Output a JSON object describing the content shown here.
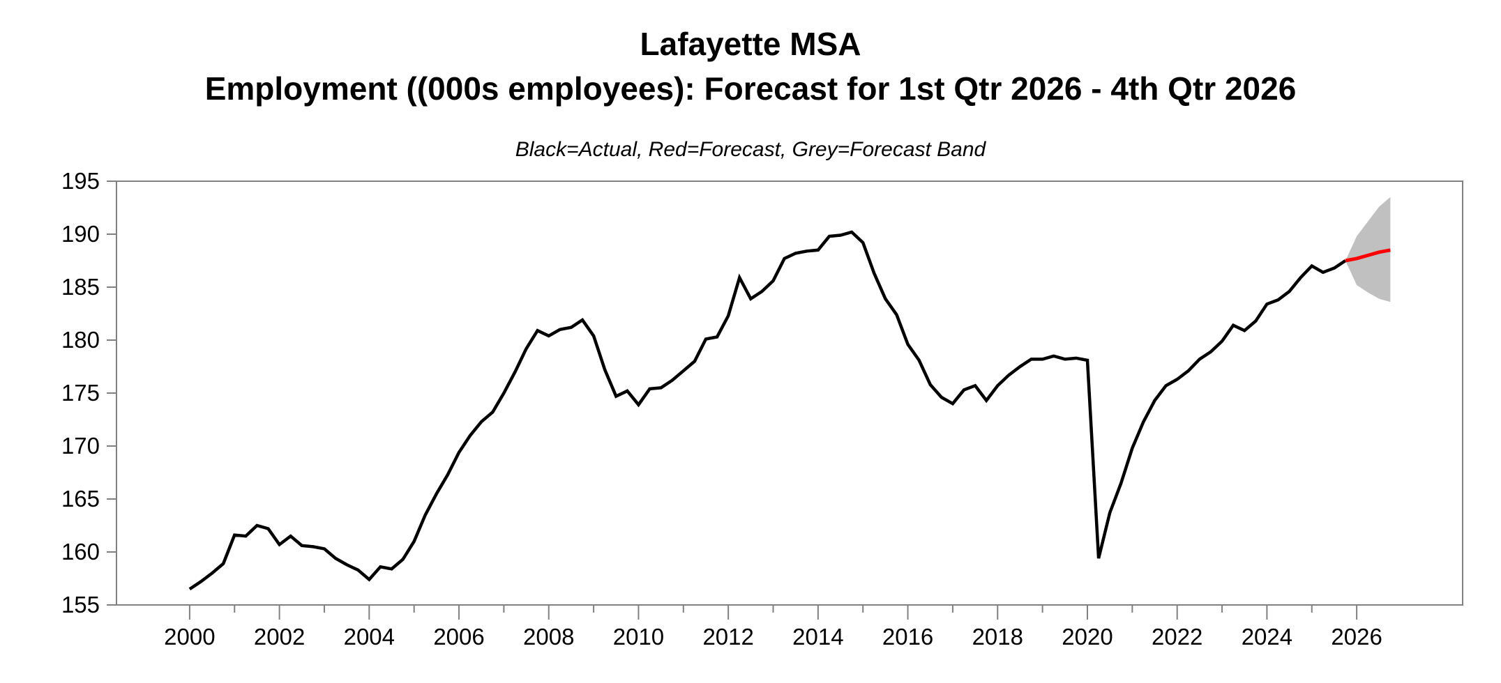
{
  "chart_data": {
    "type": "line",
    "title": "Lafayette MSA",
    "subtitle": "Employment ((000s employees): Forecast for 1st Qtr 2026 - 4th Qtr 2026",
    "legend_note": "Black=Actual, Red=Forecast, Grey=Forecast Band",
    "frequency": "quarterly",
    "grid": false,
    "ylim": [
      155,
      195
    ],
    "yticks": [
      155,
      160,
      165,
      170,
      175,
      180,
      185,
      190,
      195
    ],
    "xticks_major": [
      2000,
      2002,
      2004,
      2006,
      2008,
      2010,
      2012,
      2014,
      2016,
      2018,
      2020,
      2022,
      2024,
      2026
    ],
    "xticks_minor": [
      2001,
      2003,
      2005,
      2007,
      2009,
      2011,
      2013,
      2015,
      2017,
      2019,
      2021,
      2023,
      2025
    ],
    "x_axis_range": [
      1998.37,
      2028.36
    ],
    "colors": {
      "actual": "#000000",
      "forecast": "#ff0000",
      "band": "#c0c0c0",
      "frame": "#808080",
      "labels": "#000000"
    },
    "series": [
      {
        "name": "Actual",
        "kind": "line",
        "color": "#000000",
        "start_year": 2000,
        "start_quarter": 1,
        "values": [
          156.5,
          157.2,
          158.0,
          158.9,
          161.6,
          161.5,
          162.5,
          162.2,
          160.7,
          161.5,
          160.6,
          160.5,
          160.3,
          159.4,
          158.8,
          158.3,
          157.4,
          158.6,
          158.4,
          159.3,
          161.0,
          163.5,
          165.5,
          167.3,
          169.4,
          171.0,
          172.3,
          173.2,
          175.0,
          177.0,
          179.2,
          180.9,
          180.4,
          181.0,
          181.2,
          181.9,
          180.4,
          177.2,
          174.7,
          175.2,
          173.9,
          175.4,
          175.5,
          176.2,
          177.1,
          178.0,
          180.1,
          180.3,
          182.3,
          185.9,
          183.9,
          184.6,
          185.6,
          187.7,
          188.2,
          188.4,
          188.5,
          189.8,
          189.9,
          190.2,
          189.2,
          186.3,
          183.9,
          182.4,
          179.6,
          178.1,
          175.8,
          174.6,
          174.0,
          175.3,
          175.7,
          174.3,
          175.7,
          176.7,
          177.5,
          178.2,
          178.2,
          178.5,
          178.2,
          178.3,
          178.1,
          159.4,
          163.7,
          166.5,
          169.8,
          172.3,
          174.3,
          175.7,
          176.3,
          177.1,
          178.2,
          178.9,
          179.9,
          181.4,
          180.9,
          181.8,
          183.4,
          183.8,
          184.6,
          185.9,
          187.0,
          186.4,
          186.8,
          187.5
        ]
      },
      {
        "name": "Forecast",
        "kind": "line",
        "color": "#ff0000",
        "start_year": 2026,
        "start_quarter": 1,
        "connect_to_prev": true,
        "values": [
          187.7,
          188.0,
          188.3,
          188.5
        ]
      },
      {
        "name": "Forecast Band",
        "kind": "band",
        "color": "#c0c0c0",
        "start_year": 2026,
        "start_quarter": 1,
        "connect_to_prev": true,
        "upper": [
          189.8,
          191.2,
          192.6,
          193.5
        ],
        "lower": [
          185.2,
          184.5,
          183.9,
          183.6
        ]
      }
    ]
  }
}
